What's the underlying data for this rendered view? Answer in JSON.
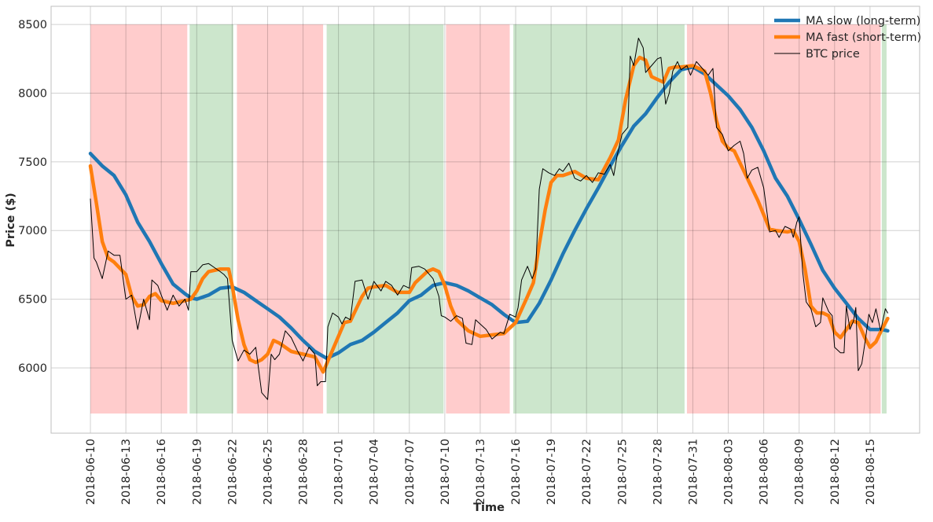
{
  "chart_data": {
    "type": "line",
    "title": "",
    "xlabel": "Time",
    "ylabel": "Price ($)",
    "x_unit": "days since 2018-06-10",
    "xlim": [
      -3.33,
      70.2
    ],
    "ylim": [
      5525,
      8632
    ],
    "grid": true,
    "legend_position": "top-right",
    "x_ticks": [
      {
        "day": 0,
        "label": "2018-06-10"
      },
      {
        "day": 3,
        "label": "2018-06-13"
      },
      {
        "day": 6,
        "label": "2018-06-16"
      },
      {
        "day": 9,
        "label": "2018-06-19"
      },
      {
        "day": 12,
        "label": "2018-06-22"
      },
      {
        "day": 15,
        "label": "2018-06-25"
      },
      {
        "day": 18,
        "label": "2018-06-28"
      },
      {
        "day": 21,
        "label": "2018-07-01"
      },
      {
        "day": 24,
        "label": "2018-07-04"
      },
      {
        "day": 27,
        "label": "2018-07-07"
      },
      {
        "day": 30,
        "label": "2018-07-10"
      },
      {
        "day": 33,
        "label": "2018-07-13"
      },
      {
        "day": 36,
        "label": "2018-07-16"
      },
      {
        "day": 39,
        "label": "2018-07-19"
      },
      {
        "day": 42,
        "label": "2018-07-22"
      },
      {
        "day": 45,
        "label": "2018-07-25"
      },
      {
        "day": 48,
        "label": "2018-07-28"
      },
      {
        "day": 51,
        "label": "2018-07-31"
      },
      {
        "day": 54,
        "label": "2018-08-03"
      },
      {
        "day": 57,
        "label": "2018-08-06"
      },
      {
        "day": 60,
        "label": "2018-08-09"
      },
      {
        "day": 63,
        "label": "2018-08-12"
      },
      {
        "day": 66,
        "label": "2018-08-15"
      }
    ],
    "y_ticks": [
      6000,
      6500,
      7000,
      7500,
      8000,
      8500
    ],
    "regions": {
      "y_range": [
        5668,
        8500
      ],
      "items": [
        {
          "signal": "sell",
          "color": "#ff0000",
          "start": 0,
          "end": 8.3
        },
        {
          "signal": "buy",
          "color": "#008000",
          "start": 8.4,
          "end": 12.2
        },
        {
          "signal": "sell",
          "color": "#ff0000",
          "start": 12.4,
          "end": 19.8
        },
        {
          "signal": "buy",
          "color": "#008000",
          "start": 20.0,
          "end": 30.0
        },
        {
          "signal": "sell",
          "color": "#ff0000",
          "start": 30.1,
          "end": 35.6
        },
        {
          "signal": "buy",
          "color": "#008000",
          "start": 35.8,
          "end": 50.4
        },
        {
          "signal": "sell",
          "color": "#ff0000",
          "start": 50.5,
          "end": 67.0
        },
        {
          "signal": "buy",
          "color": "#008000",
          "start": 67.0,
          "end": 67.5
        }
      ]
    },
    "series": [
      {
        "name": "MA slow (long-term)",
        "color": "#1f77b4",
        "width": 4.5,
        "x": [
          0,
          1,
          2,
          3,
          4,
          5,
          6,
          7,
          8,
          8.5,
          9,
          10,
          11,
          12,
          13,
          14,
          15,
          16,
          17,
          18,
          19,
          20,
          21,
          22,
          23,
          24,
          25,
          26,
          27,
          28,
          29,
          30,
          31,
          32,
          33,
          34,
          35,
          36,
          37,
          38,
          39,
          40,
          41,
          42,
          43,
          44,
          45,
          46,
          47,
          48,
          49,
          50,
          51,
          52,
          53,
          54,
          55,
          56,
          57,
          58,
          59,
          60,
          61,
          62,
          63,
          64,
          65,
          66,
          67,
          67.5
        ],
        "y": [
          7560,
          7470,
          7400,
          7260,
          7060,
          6920,
          6760,
          6610,
          6540,
          6510,
          6500,
          6530,
          6580,
          6590,
          6550,
          6490,
          6430,
          6370,
          6290,
          6200,
          6120,
          6070,
          6110,
          6170,
          6200,
          6260,
          6330,
          6400,
          6490,
          6530,
          6600,
          6620,
          6600,
          6560,
          6510,
          6460,
          6390,
          6330,
          6340,
          6470,
          6640,
          6830,
          7000,
          7160,
          7310,
          7470,
          7620,
          7760,
          7850,
          7970,
          8080,
          8170,
          8190,
          8140,
          8060,
          7980,
          7880,
          7750,
          7580,
          7380,
          7250,
          7080,
          6900,
          6710,
          6580,
          6470,
          6360,
          6280,
          6280,
          6270
        ]
      },
      {
        "name": "MA fast (short-term)",
        "color": "#ff7f0e",
        "width": 4.5,
        "x": [
          0,
          0.5,
          1,
          1.5,
          2,
          3,
          3.5,
          4,
          4.5,
          5,
          5.5,
          6,
          7,
          8,
          8.5,
          9,
          9.5,
          10,
          11,
          11.7,
          12,
          12.5,
          13,
          13.5,
          14,
          14.5,
          15,
          15.5,
          16,
          17,
          18,
          19,
          19.7,
          20.5,
          21.5,
          22,
          23,
          23.5,
          24,
          25,
          26,
          27,
          27.5,
          28.5,
          29,
          29.5,
          30,
          30.5,
          31,
          32,
          33,
          34,
          35,
          36,
          37,
          37.5,
          38,
          38.5,
          39,
          39.5,
          40,
          41,
          42,
          43,
          43.5,
          44,
          44.7,
          45.3,
          46,
          46.5,
          47,
          47.5,
          48,
          48.5,
          49,
          49.5,
          50,
          51,
          52,
          52.5,
          53,
          53.5,
          54,
          54.5,
          55,
          55.5,
          56.5,
          57.5,
          58,
          59,
          59.5,
          60,
          60.5,
          61,
          61.5,
          62,
          62.5,
          63,
          63.5,
          64,
          64.5,
          65,
          65.5,
          66,
          66.5,
          67,
          67.5
        ],
        "y": [
          7470,
          7200,
          6920,
          6800,
          6770,
          6680,
          6520,
          6450,
          6460,
          6520,
          6540,
          6490,
          6470,
          6490,
          6500,
          6560,
          6650,
          6700,
          6720,
          6720,
          6600,
          6350,
          6170,
          6060,
          6040,
          6060,
          6100,
          6200,
          6180,
          6120,
          6100,
          6080,
          5970,
          6130,
          6330,
          6340,
          6520,
          6580,
          6590,
          6600,
          6550,
          6550,
          6620,
          6700,
          6720,
          6700,
          6600,
          6450,
          6350,
          6270,
          6230,
          6240,
          6250,
          6330,
          6520,
          6620,
          6900,
          7150,
          7350,
          7400,
          7400,
          7430,
          7380,
          7370,
          7450,
          7530,
          7660,
          7950,
          8200,
          8260,
          8240,
          8120,
          8100,
          8080,
          8180,
          8190,
          8190,
          8200,
          8160,
          8000,
          7800,
          7650,
          7600,
          7580,
          7490,
          7400,
          7220,
          7010,
          7000,
          6990,
          7000,
          6920,
          6720,
          6450,
          6400,
          6400,
          6380,
          6260,
          6220,
          6280,
          6340,
          6330,
          6230,
          6150,
          6190,
          6280,
          6360
        ]
      },
      {
        "name": "BTC price",
        "color": "#000000",
        "width": 1,
        "x": [
          0,
          0.3,
          0.5,
          1,
          1.5,
          2,
          2.5,
          3,
          3.5,
          4,
          4.5,
          5,
          5.2,
          5.7,
          6,
          6.5,
          7,
          7.5,
          8,
          8.3,
          8.5,
          9,
          9.5,
          10,
          10.5,
          11,
          11.3,
          11.6,
          12,
          12.5,
          13,
          13.5,
          14,
          14.5,
          15,
          15.3,
          15.6,
          16,
          16.5,
          17,
          17.5,
          18,
          18.5,
          19,
          19.2,
          19.5,
          19.9,
          20.1,
          20.5,
          21,
          21.3,
          21.6,
          22,
          22.4,
          23,
          23.5,
          24,
          24.6,
          25,
          25.5,
          26,
          26.5,
          27,
          27.2,
          27.8,
          28.3,
          29,
          29.5,
          29.7,
          30,
          30.5,
          31,
          31.5,
          31.8,
          32.3,
          32.6,
          33.5,
          34,
          34.7,
          35,
          35.5,
          36,
          36.2,
          36.5,
          37,
          37.4,
          37.7,
          38,
          38.3,
          38.8,
          39.3,
          39.7,
          40,
          40.5,
          41,
          41.5,
          42,
          42.5,
          43,
          43.5,
          44,
          44.3,
          44.6,
          45,
          45.5,
          45.7,
          46,
          46.4,
          46.8,
          47,
          47.5,
          48,
          48.3,
          48.7,
          49,
          49.3,
          49.7,
          50,
          50.5,
          50.8,
          51.3,
          51.8,
          52.3,
          52.7,
          53,
          53.5,
          54,
          54.5,
          55,
          55.3,
          55.6,
          56,
          56.5,
          57,
          57.5,
          58,
          58.3,
          58.8,
          59.3,
          59.5,
          59.8,
          60,
          60.3,
          60.6,
          61,
          61.4,
          61.8,
          62,
          62.5,
          62.8,
          63,
          63.5,
          63.8,
          64,
          64.3,
          64.6,
          64.8,
          65,
          65.3,
          65.6,
          65.9,
          66.2,
          66.5,
          66.9,
          67.3,
          67.5
        ],
        "y": [
          7230,
          6800,
          6770,
          6650,
          6850,
          6820,
          6820,
          6500,
          6530,
          6280,
          6500,
          6350,
          6640,
          6600,
          6530,
          6420,
          6530,
          6450,
          6500,
          6420,
          6700,
          6700,
          6750,
          6760,
          6730,
          6700,
          6680,
          6650,
          6200,
          6050,
          6130,
          6100,
          6150,
          5820,
          5770,
          6100,
          6060,
          6100,
          6270,
          6220,
          6130,
          6050,
          6150,
          6100,
          5870,
          5900,
          5900,
          6300,
          6400,
          6370,
          6320,
          6370,
          6350,
          6630,
          6640,
          6500,
          6630,
          6560,
          6630,
          6600,
          6530,
          6600,
          6580,
          6730,
          6740,
          6720,
          6650,
          6520,
          6380,
          6370,
          6340,
          6380,
          6360,
          6180,
          6170,
          6350,
          6280,
          6210,
          6260,
          6250,
          6390,
          6370,
          6440,
          6640,
          6740,
          6650,
          6720,
          7300,
          7450,
          7420,
          7400,
          7450,
          7430,
          7490,
          7380,
          7360,
          7400,
          7350,
          7420,
          7410,
          7480,
          7400,
          7550,
          7700,
          7750,
          8270,
          8200,
          8400,
          8330,
          8150,
          8200,
          8250,
          8260,
          7920,
          8000,
          8160,
          8230,
          8170,
          8200,
          8130,
          8230,
          8180,
          8130,
          8180,
          7750,
          7700,
          7580,
          7620,
          7650,
          7560,
          7380,
          7440,
          7460,
          7310,
          6990,
          7000,
          6950,
          7030,
          7010,
          6950,
          7060,
          7100,
          6700,
          6480,
          6430,
          6300,
          6330,
          6510,
          6410,
          6380,
          6150,
          6110,
          6110,
          6450,
          6280,
          6340,
          6440,
          5980,
          6030,
          6200,
          6390,
          6330,
          6430,
          6270,
          6430,
          6400
        ]
      }
    ]
  }
}
